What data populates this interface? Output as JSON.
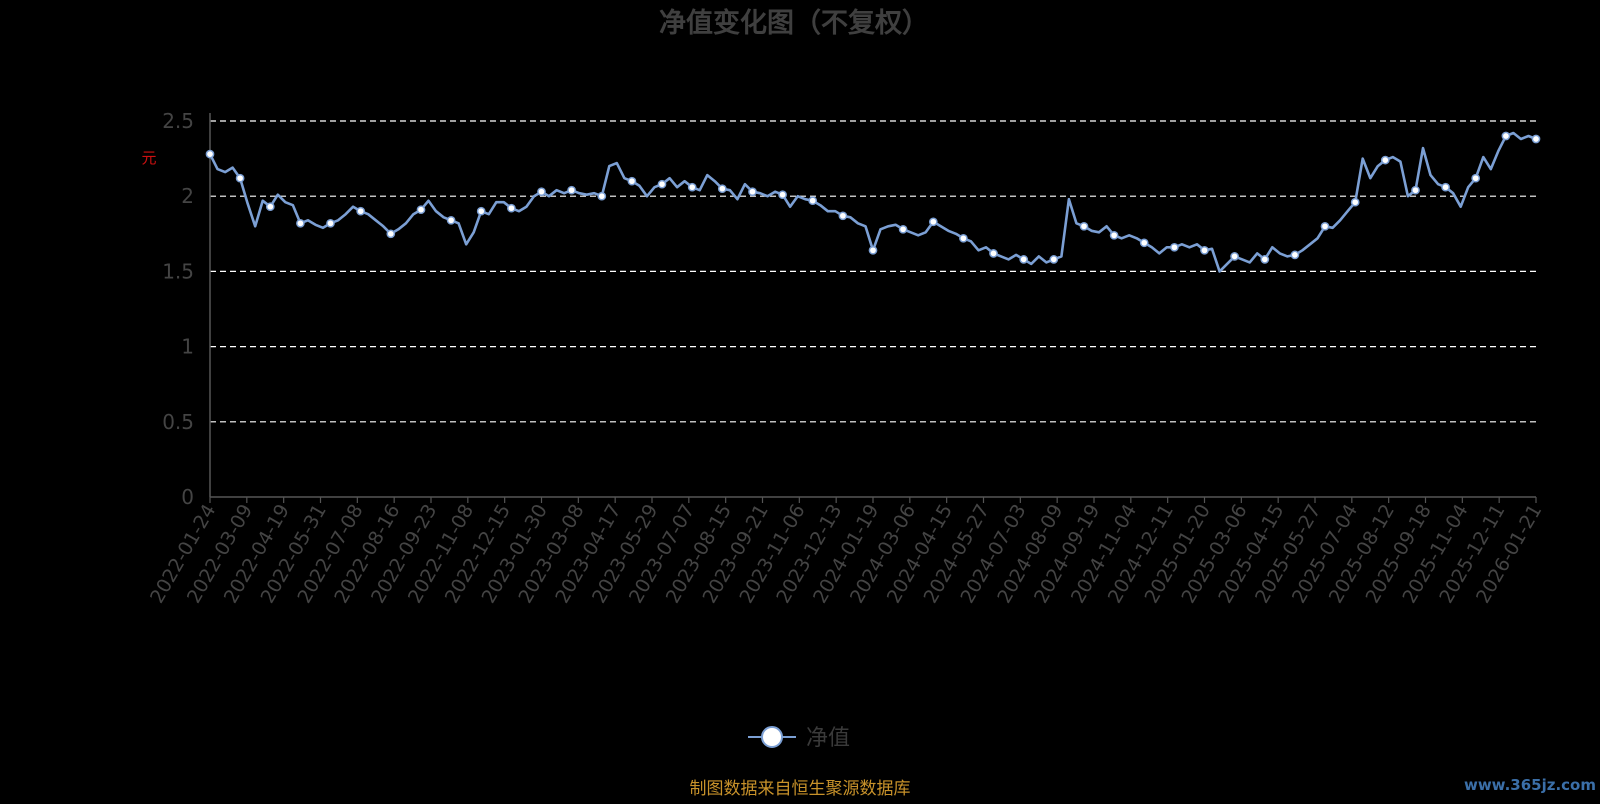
{
  "chart_data": {
    "type": "line",
    "title": "净值变化图（不复权）",
    "ylabel": "元",
    "ylim": [
      0,
      2.5
    ],
    "yticks": [
      0,
      0.5,
      1,
      1.5,
      2,
      2.5
    ],
    "grid": true,
    "legend_position": "bottom-center",
    "x_tick_labels": [
      "2022-01-24",
      "2022-03-09",
      "2022-04-19",
      "2022-05-31",
      "2022-07-08",
      "2022-08-16",
      "2022-09-23",
      "2022-11-08",
      "2022-12-15",
      "2023-01-30",
      "2023-03-08",
      "2023-04-17",
      "2023-05-29",
      "2023-07-07",
      "2023-08-15",
      "2023-09-21",
      "2023-11-06",
      "2023-12-13",
      "2024-01-19",
      "2024-03-06",
      "2024-04-15",
      "2024-05-27",
      "2024-07-03",
      "2024-08-09",
      "2024-09-19",
      "2024-11-04",
      "2024-12-11",
      "2025-01-20",
      "2025-03-06",
      "2025-04-15",
      "2025-05-27",
      "2025-07-04",
      "2025-08-12",
      "2025-09-18",
      "2025-11-04",
      "2025-12-11",
      "2026-01-21"
    ],
    "series": [
      {
        "name": "净值",
        "color": "#7b9fd4",
        "values": [
          2.28,
          2.18,
          2.16,
          2.19,
          2.12,
          1.95,
          1.8,
          1.97,
          1.93,
          2.01,
          1.96,
          1.94,
          1.82,
          1.84,
          1.81,
          1.79,
          1.82,
          1.84,
          1.88,
          1.93,
          1.9,
          1.88,
          1.84,
          1.8,
          1.75,
          1.78,
          1.82,
          1.88,
          1.91,
          1.97,
          1.9,
          1.86,
          1.84,
          1.82,
          1.68,
          1.76,
          1.9,
          1.88,
          1.96,
          1.96,
          1.92,
          1.9,
          1.93,
          2.0,
          2.03,
          2.0,
          2.04,
          2.02,
          2.04,
          2.02,
          2.01,
          2.02,
          2.0,
          2.2,
          2.22,
          2.12,
          2.1,
          2.07,
          2.0,
          2.06,
          2.08,
          2.12,
          2.06,
          2.1,
          2.06,
          2.04,
          2.14,
          2.1,
          2.05,
          2.04,
          1.98,
          2.08,
          2.03,
          2.02,
          2.0,
          2.03,
          2.01,
          1.93,
          2.0,
          1.98,
          1.97,
          1.94,
          1.9,
          1.9,
          1.87,
          1.86,
          1.82,
          1.8,
          1.64,
          1.78,
          1.8,
          1.81,
          1.78,
          1.76,
          1.74,
          1.76,
          1.83,
          1.8,
          1.77,
          1.75,
          1.72,
          1.7,
          1.64,
          1.66,
          1.62,
          1.6,
          1.58,
          1.61,
          1.58,
          1.55,
          1.6,
          1.56,
          1.58,
          1.6,
          1.98,
          1.82,
          1.8,
          1.77,
          1.76,
          1.8,
          1.74,
          1.72,
          1.74,
          1.72,
          1.69,
          1.66,
          1.62,
          1.66,
          1.66,
          1.68,
          1.66,
          1.68,
          1.64,
          1.65,
          1.5,
          1.55,
          1.6,
          1.58,
          1.56,
          1.62,
          1.58,
          1.66,
          1.62,
          1.6,
          1.61,
          1.64,
          1.68,
          1.72,
          1.8,
          1.79,
          1.84,
          1.9,
          1.96,
          2.25,
          2.12,
          2.2,
          2.24,
          2.26,
          2.23,
          2.0,
          2.04,
          2.32,
          2.14,
          2.08,
          2.06,
          2.02,
          1.93,
          2.06,
          2.12,
          2.26,
          2.18,
          2.3,
          2.4,
          2.42,
          2.38,
          2.4,
          2.38
        ]
      }
    ],
    "marker_every": 4,
    "source_note": "制图数据来自恒生聚源数据库",
    "watermark": "www.365jz.com"
  }
}
